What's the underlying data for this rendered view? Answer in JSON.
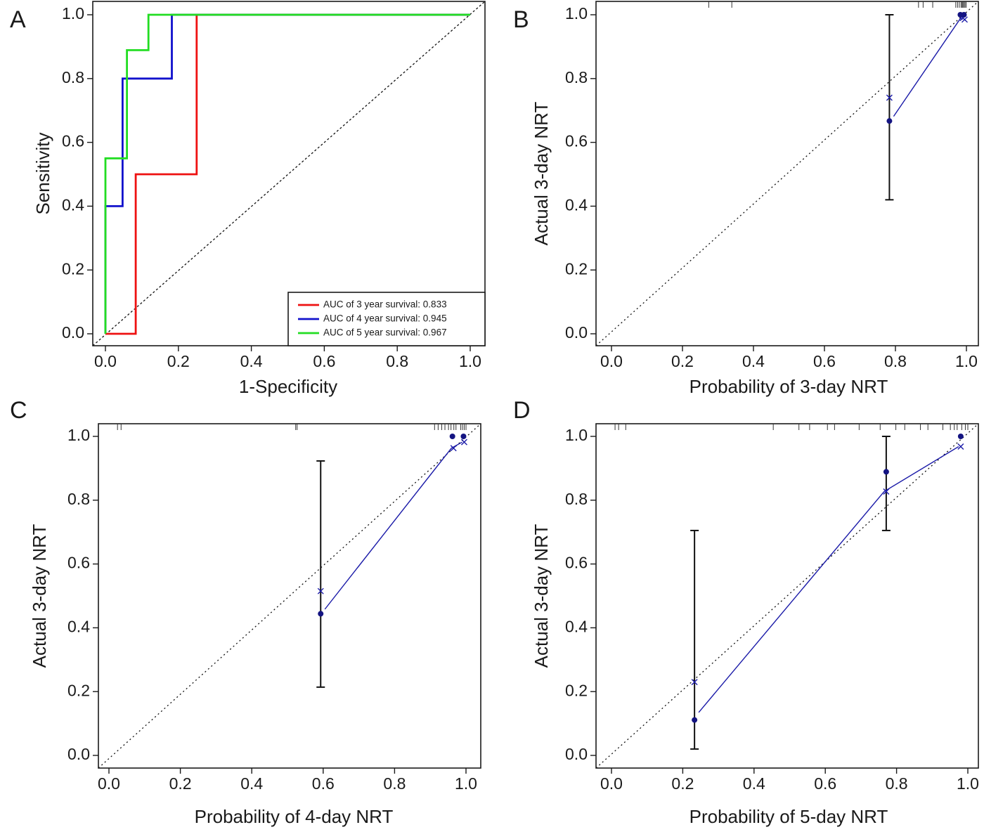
{
  "chart_data": [
    {
      "panel": "A",
      "type": "line",
      "title": "",
      "xlabel": "1-Specificity",
      "ylabel": "Sensitivity",
      "xlim": [
        0,
        1
      ],
      "ylim": [
        0,
        1
      ],
      "xticks": [
        "0.0",
        "0.2",
        "0.4",
        "0.6",
        "0.8",
        "1.0"
      ],
      "yticks": [
        "0.0",
        "0.2",
        "0.4",
        "0.6",
        "0.8",
        "1.0"
      ],
      "reference_line": "diagonal dashed",
      "legend_position": "bottom-right",
      "series": [
        {
          "name": "AUC of 3 year survival: 0.833",
          "color": "#ee1111",
          "x": [
            0,
            0.083,
            0.083,
            0.25,
            0.25,
            1.0
          ],
          "y": [
            0,
            0,
            0.5,
            0.5,
            1.0,
            1.0
          ]
        },
        {
          "name": "AUC of 4 year survival: 0.945",
          "color": "#1111cc",
          "x": [
            0,
            0,
            0.047,
            0.047,
            0.182,
            0.182,
            1.0
          ],
          "y": [
            0,
            0.4,
            0.4,
            0.8,
            0.8,
            1.0,
            1.0
          ]
        },
        {
          "name": "AUC of 5 year survival: 0.967",
          "color": "#22dd22",
          "x": [
            0,
            0,
            0.059,
            0.059,
            0.118,
            0.118,
            1.0
          ],
          "y": [
            0,
            0.55,
            0.55,
            0.889,
            0.889,
            1.0,
            1.0
          ]
        }
      ]
    },
    {
      "panel": "B",
      "type": "scatter",
      "title": "",
      "xlabel": "Probability of 3-day NRT",
      "ylabel": "Actual 3-day NRT",
      "xlim": [
        0,
        1
      ],
      "ylim": [
        0,
        1
      ],
      "xticks": [
        "0.0",
        "0.2",
        "0.4",
        "0.6",
        "0.8",
        "1.0"
      ],
      "yticks": [
        "0.0",
        "0.2",
        "0.4",
        "0.6",
        "0.8",
        "1.0"
      ],
      "observed": {
        "x": [
          0.783,
          0.983,
          0.993
        ],
        "y": [
          0.667,
          1.0,
          1.0
        ]
      },
      "error_bars": [
        {
          "x": 0.783,
          "low": 0.42,
          "high": 1.0
        }
      ],
      "bias_corrected": {
        "x": [
          0.783,
          0.99,
          0.995
        ],
        "y": [
          0.74,
          0.99,
          0.985
        ]
      },
      "rug": [
        0.274,
        0.339,
        0.865,
        0.878,
        0.905,
        0.97,
        0.975,
        0.98,
        0.985,
        0.988,
        0.99,
        0.993,
        0.996,
        0.999
      ]
    },
    {
      "panel": "C",
      "type": "scatter",
      "title": "",
      "xlabel": "Probability of 4-day NRT",
      "ylabel": "Actual 3-day NRT",
      "xlim": [
        0,
        1
      ],
      "ylim": [
        0,
        1
      ],
      "xticks": [
        "0.0",
        "0.2",
        "0.4",
        "0.6",
        "0.8",
        "1.0"
      ],
      "yticks": [
        "0.0",
        "0.2",
        "0.4",
        "0.6",
        "0.8",
        "1.0"
      ],
      "observed": {
        "x": [
          0.593,
          0.962,
          0.993
        ],
        "y": [
          0.444,
          1.0,
          1.0
        ]
      },
      "error_bars": [
        {
          "x": 0.593,
          "low": 0.214,
          "high": 0.923
        }
      ],
      "bias_corrected": {
        "x": [
          0.593,
          0.965,
          0.995
        ],
        "y": [
          0.515,
          0.963,
          0.982
        ]
      },
      "rug": [
        0.024,
        0.034,
        0.523,
        0.527,
        0.912,
        0.922,
        0.932,
        0.941,
        0.951,
        0.958,
        0.966,
        0.972,
        0.985,
        0.99,
        0.995,
        1.0
      ]
    },
    {
      "panel": "D",
      "type": "scatter",
      "title": "",
      "xlabel": "Probability of 5-day NRT",
      "ylabel": "Actual 3-day NRT",
      "xlim": [
        0,
        1
      ],
      "ylim": [
        0,
        1
      ],
      "xticks": [
        "0.0",
        "0.2",
        "0.4",
        "0.6",
        "0.8",
        "1.0"
      ],
      "yticks": [
        "0.0",
        "0.2",
        "0.4",
        "0.6",
        "0.8",
        "1.0"
      ],
      "observed": {
        "x": [
          0.233,
          0.771,
          0.98
        ],
        "y": [
          0.111,
          0.889,
          1.0
        ]
      },
      "error_bars": [
        {
          "x": 0.233,
          "low": 0.02,
          "high": 0.705
        },
        {
          "x": 0.771,
          "low": 0.705,
          "high": 1.0
        }
      ],
      "bias_corrected": {
        "x": [
          0.233,
          0.771,
          0.98
        ],
        "y": [
          0.23,
          0.827,
          0.968
        ]
      },
      "rug": [
        0.01,
        0.02,
        0.04,
        0.454,
        0.526,
        0.556,
        0.606,
        0.626,
        0.695,
        0.754,
        0.798,
        0.823,
        0.867,
        0.888,
        0.93,
        0.951,
        0.962,
        0.97,
        0.983,
        0.993,
        1.0
      ]
    }
  ],
  "colors": {
    "calibration": "#1a1aa8",
    "error_bar": "#111111",
    "reference": "#111111"
  }
}
